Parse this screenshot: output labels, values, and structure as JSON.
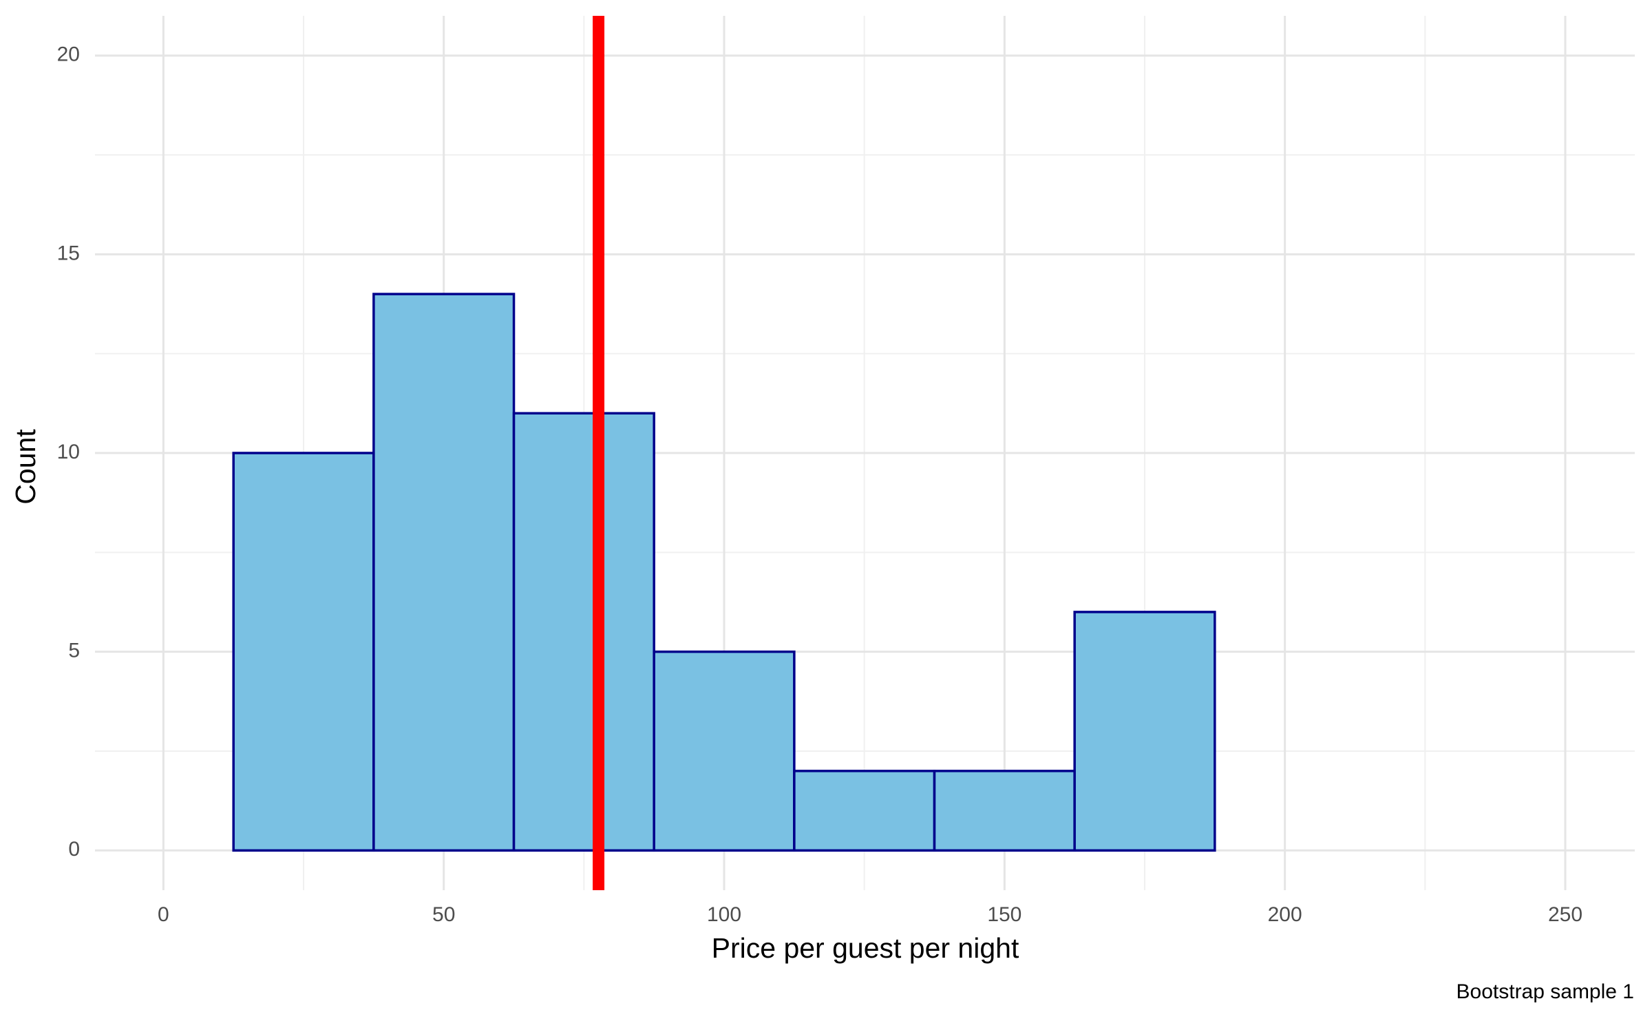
{
  "chart_data": {
    "type": "histogram",
    "x_label": "Price per guest per night",
    "y_label": "Count",
    "caption": "Bootstrap sample 1",
    "bins": [
      12.5,
      37.5,
      62.5,
      87.5,
      112.5,
      137.5,
      162.5,
      187.5,
      212.5,
      237.5
    ],
    "values": [
      10,
      14,
      11,
      5,
      2,
      2,
      6,
      0,
      0
    ],
    "color": "#7ac1e3",
    "edgecolor": "#00008b",
    "reference_line": {
      "value": 77.6,
      "color": "#ff0000"
    },
    "xlim": [
      -12.2,
      262.4
    ],
    "ylim": [
      -1,
      21
    ],
    "xticks": [
      0,
      50,
      100,
      150,
      200,
      250
    ],
    "yticks": [
      0,
      5,
      10,
      15,
      20
    ],
    "grid": true
  }
}
